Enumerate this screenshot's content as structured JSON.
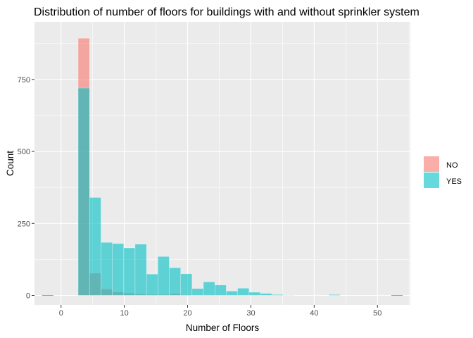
{
  "chart_data": {
    "type": "bar",
    "title": "Distribution of number of floors for buildings with and without sprinkler system",
    "xlabel": "Number of Floors",
    "ylabel": "Count",
    "xlim": [
      -4.2,
      55.2
    ],
    "ylim": [
      -33,
      950
    ],
    "x_ticks": [
      0,
      10,
      20,
      30,
      40,
      50
    ],
    "y_ticks": [
      0,
      250,
      500,
      750
    ],
    "bin_width": 1.8,
    "x": [
      3.6,
      5.4,
      7.2,
      9.0,
      10.8,
      12.6,
      14.4,
      16.2,
      18.0,
      19.8,
      21.6,
      23.4,
      25.2,
      27.0,
      28.8,
      30.6,
      32.4,
      34.2,
      36.0,
      37.8,
      39.6,
      41.4,
      43.2,
      45.0,
      46.8,
      48.6,
      50.4
    ],
    "series": [
      {
        "name": "NO",
        "color": "#F8766D",
        "values": [
          893,
          77,
          22,
          12,
          8,
          5,
          3,
          3,
          6,
          2,
          1,
          1,
          0,
          0,
          0,
          0,
          0,
          0,
          0,
          0,
          0,
          0,
          0,
          0,
          0,
          0,
          0
        ]
      },
      {
        "name": "YES",
        "color": "#00BFC4",
        "values": [
          720,
          340,
          184,
          180,
          165,
          178,
          74,
          135,
          96,
          75,
          24,
          47,
          36,
          15,
          25,
          11,
          7,
          3,
          1,
          0,
          0,
          0,
          3,
          0,
          0,
          0,
          0
        ]
      }
    ],
    "grid": true,
    "legend_placement": "right",
    "overlap": "identity, semi-transparent",
    "panel_background": "#EBEBEB",
    "grid_color": "#FFFFFF"
  }
}
